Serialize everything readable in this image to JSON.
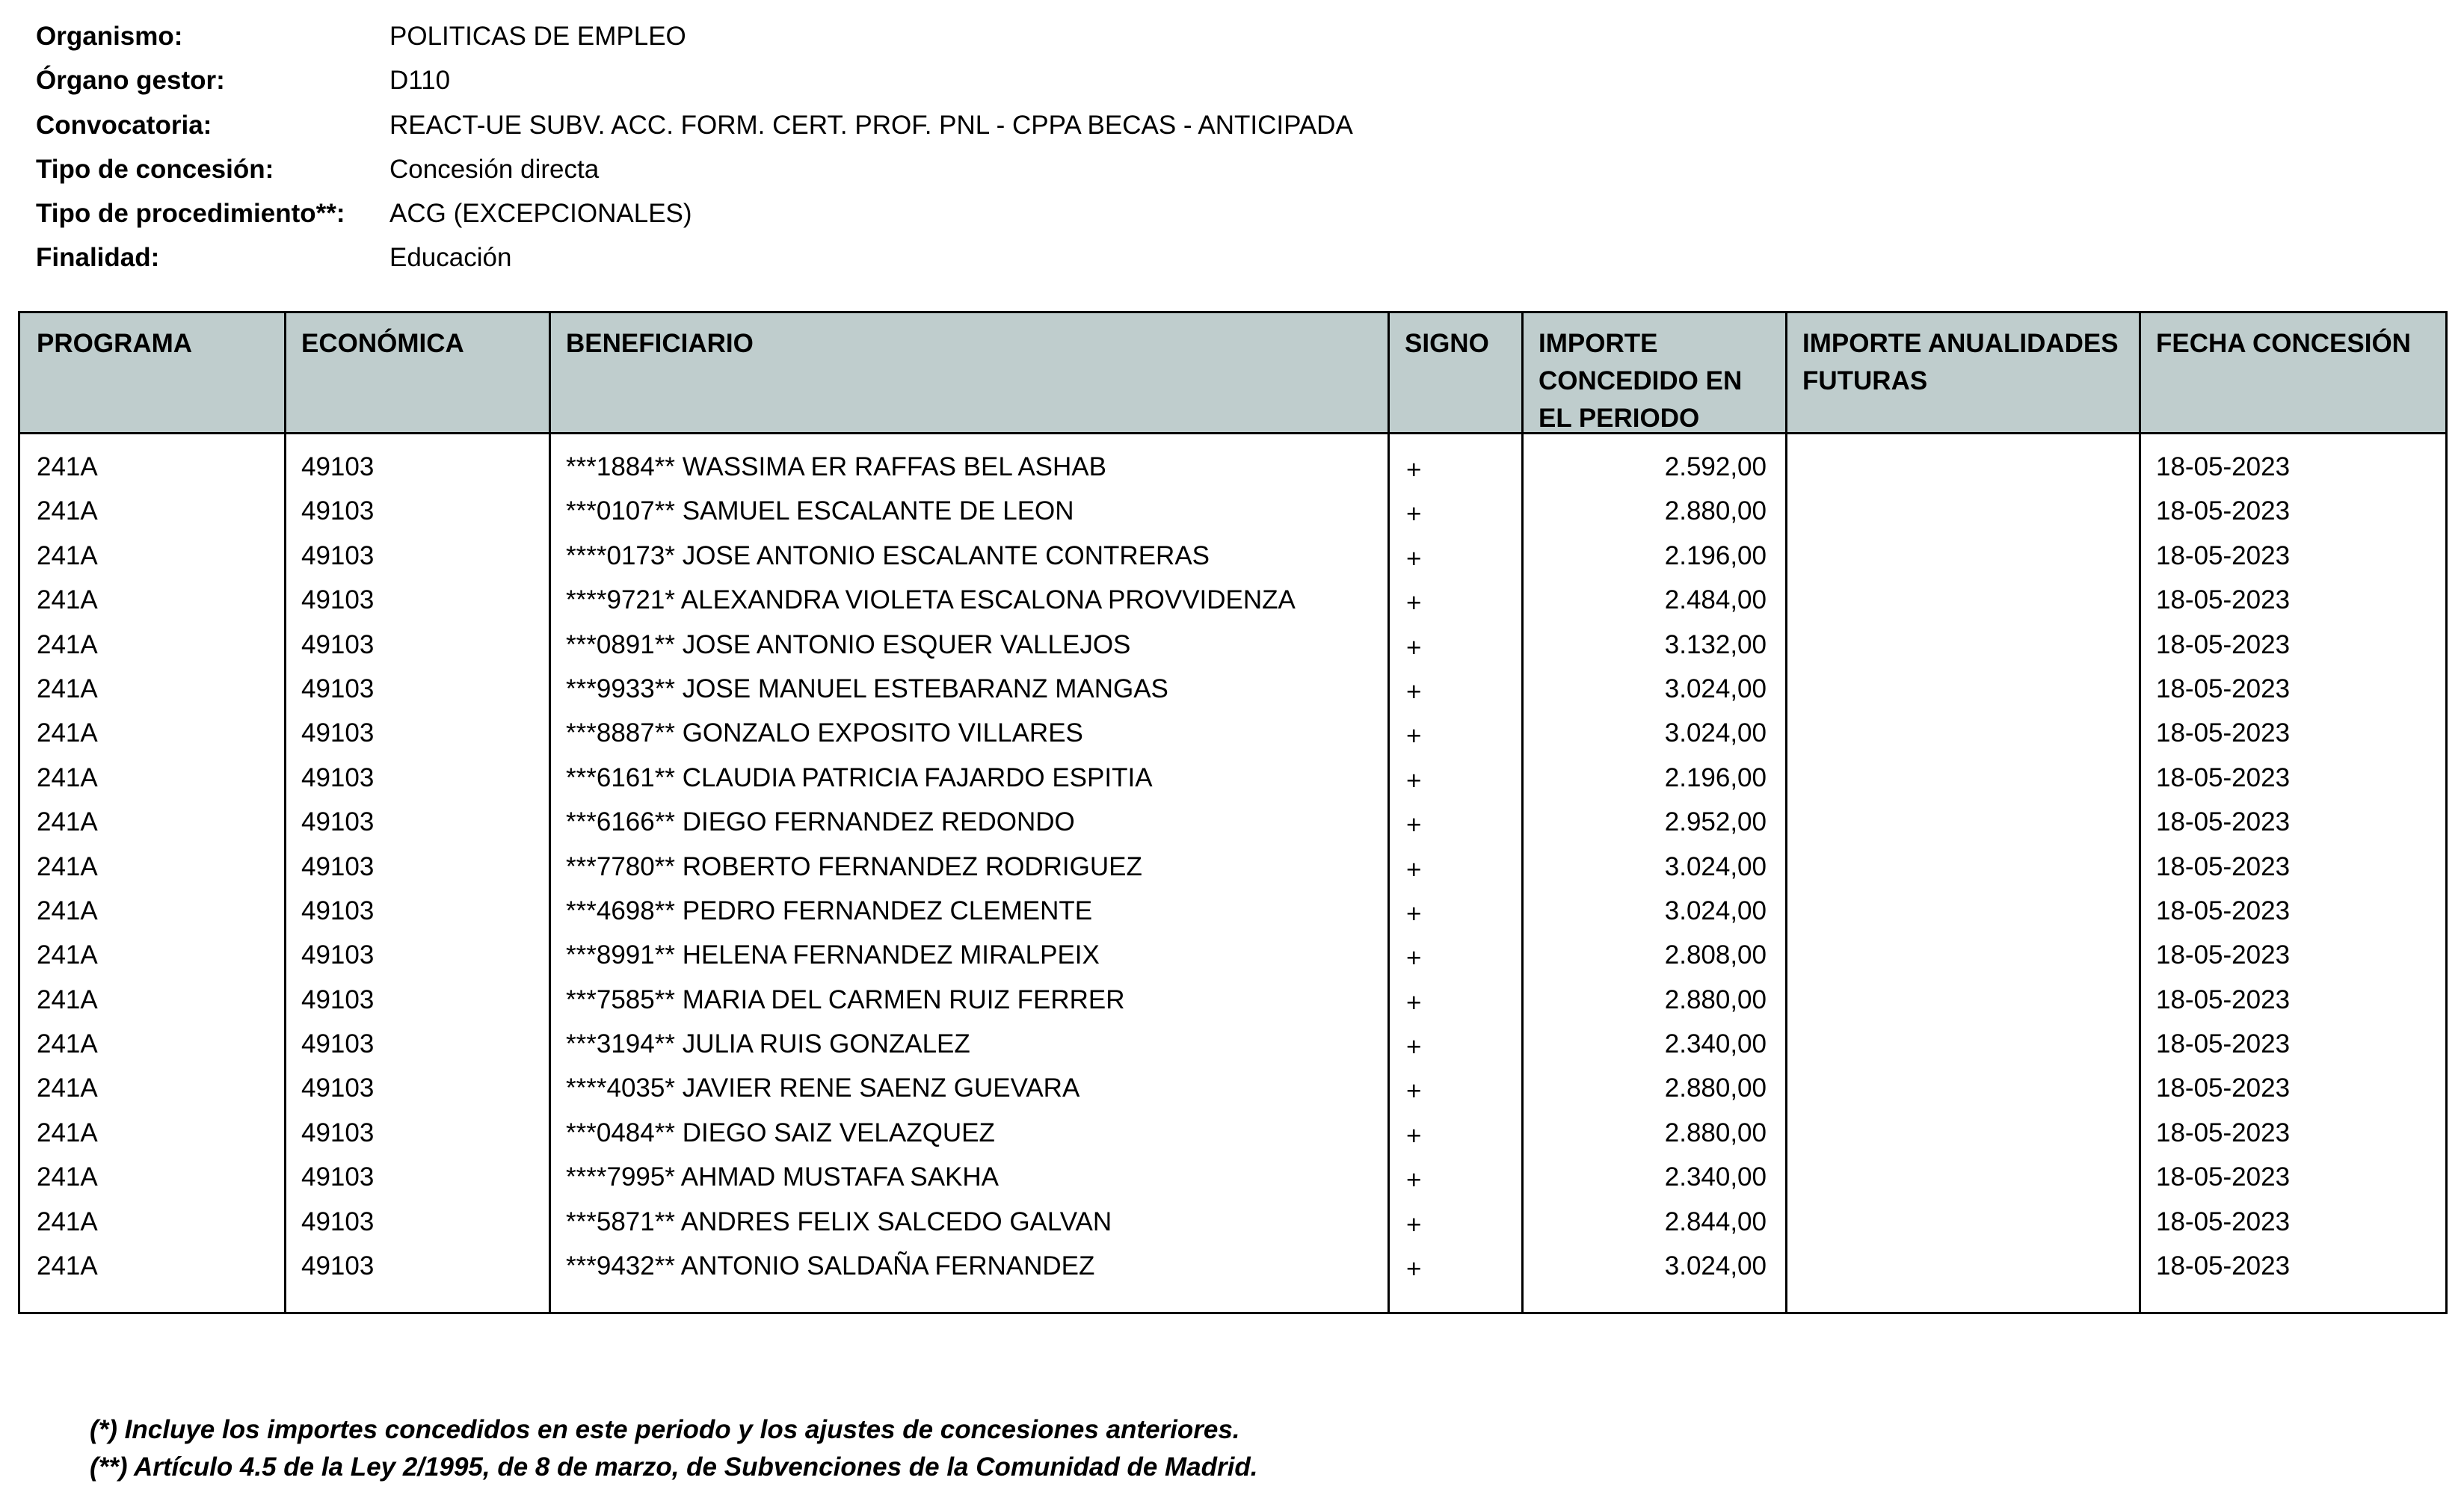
{
  "meta": [
    {
      "label": "Organismo:",
      "value": "POLITICAS DE EMPLEO"
    },
    {
      "label": "Órgano gestor:",
      "value": "D110"
    },
    {
      "label": "Convocatoria:",
      "value": "REACT-UE SUBV. ACC. FORM. CERT. PROF. PNL - CPPA BECAS - ANTICIPADA"
    },
    {
      "label": "Tipo de concesión:",
      "value": "Concesión directa"
    },
    {
      "label": "Tipo de procedimiento**:",
      "value": "ACG (EXCEPCIONALES)"
    },
    {
      "label": "Finalidad:",
      "value": "Educación"
    }
  ],
  "table": {
    "header_color": "#bfcdcd",
    "columns": [
      {
        "label": "PROGRAMA"
      },
      {
        "label": "ECONÓMICA"
      },
      {
        "label": "BENEFICIARIO"
      },
      {
        "label": "SIGNO"
      },
      {
        "label": "IMPORTE CONCEDIDO EN EL PERIODO"
      },
      {
        "label": "IMPORTE ANUALIDADES FUTURAS"
      },
      {
        "label": "FECHA CONCESIÓN"
      }
    ],
    "rows": [
      [
        "241A",
        "49103",
        "***1884** WASSIMA ER RAFFAS BEL ASHAB",
        "+",
        "2.592,00",
        "",
        "18-05-2023"
      ],
      [
        "241A",
        "49103",
        "***0107** SAMUEL ESCALANTE DE LEON",
        "+",
        "2.880,00",
        "",
        "18-05-2023"
      ],
      [
        "241A",
        "49103",
        "****0173* JOSE ANTONIO ESCALANTE CONTRERAS",
        "+",
        "2.196,00",
        "",
        "18-05-2023"
      ],
      [
        "241A",
        "49103",
        "****9721* ALEXANDRA VIOLETA ESCALONA PROVVIDENZA",
        "+",
        "2.484,00",
        "",
        "18-05-2023"
      ],
      [
        "241A",
        "49103",
        "***0891** JOSE ANTONIO ESQUER VALLEJOS",
        "+",
        "3.132,00",
        "",
        "18-05-2023"
      ],
      [
        "241A",
        "49103",
        "***9933** JOSE MANUEL ESTEBARANZ MANGAS",
        "+",
        "3.024,00",
        "",
        "18-05-2023"
      ],
      [
        "241A",
        "49103",
        "***8887** GONZALO EXPOSITO VILLARES",
        "+",
        "3.024,00",
        "",
        "18-05-2023"
      ],
      [
        "241A",
        "49103",
        "***6161** CLAUDIA PATRICIA FAJARDO ESPITIA",
        "+",
        "2.196,00",
        "",
        "18-05-2023"
      ],
      [
        "241A",
        "49103",
        "***6166** DIEGO FERNANDEZ REDONDO",
        "+",
        "2.952,00",
        "",
        "18-05-2023"
      ],
      [
        "241A",
        "49103",
        "***7780** ROBERTO FERNANDEZ RODRIGUEZ",
        "+",
        "3.024,00",
        "",
        "18-05-2023"
      ],
      [
        "241A",
        "49103",
        "***4698** PEDRO FERNANDEZ CLEMENTE",
        "+",
        "3.024,00",
        "",
        "18-05-2023"
      ],
      [
        "241A",
        "49103",
        "***8991** HELENA FERNANDEZ MIRALPEIX",
        "+",
        "2.808,00",
        "",
        "18-05-2023"
      ],
      [
        "241A",
        "49103",
        "***7585** MARIA DEL CARMEN RUIZ FERRER",
        "+",
        "2.880,00",
        "",
        "18-05-2023"
      ],
      [
        "241A",
        "49103",
        "***3194** JULIA RUIS GONZALEZ",
        "+",
        "2.340,00",
        "",
        "18-05-2023"
      ],
      [
        "241A",
        "49103",
        "****4035* JAVIER RENE SAENZ GUEVARA",
        "+",
        "2.880,00",
        "",
        "18-05-2023"
      ],
      [
        "241A",
        "49103",
        "***0484** DIEGO SAIZ VELAZQUEZ",
        "+",
        "2.880,00",
        "",
        "18-05-2023"
      ],
      [
        "241A",
        "49103",
        "****7995* AHMAD MUSTAFA SAKHA",
        "+",
        "2.340,00",
        "",
        "18-05-2023"
      ],
      [
        "241A",
        "49103",
        "***5871** ANDRES FELIX SALCEDO GALVAN",
        "+",
        "2.844,00",
        "",
        "18-05-2023"
      ],
      [
        "241A",
        "49103",
        "***9432** ANTONIO SALDAÑA FERNANDEZ",
        "+",
        "3.024,00",
        "",
        "18-05-2023"
      ]
    ]
  },
  "footnotes": [
    "(*) Incluye los importes concedidos en este periodo y los ajustes de concesiones anteriores.",
    "(**) Artículo 4.5 de la Ley 2/1995, de 8 de marzo, de Subvenciones de la Comunidad de Madrid."
  ]
}
